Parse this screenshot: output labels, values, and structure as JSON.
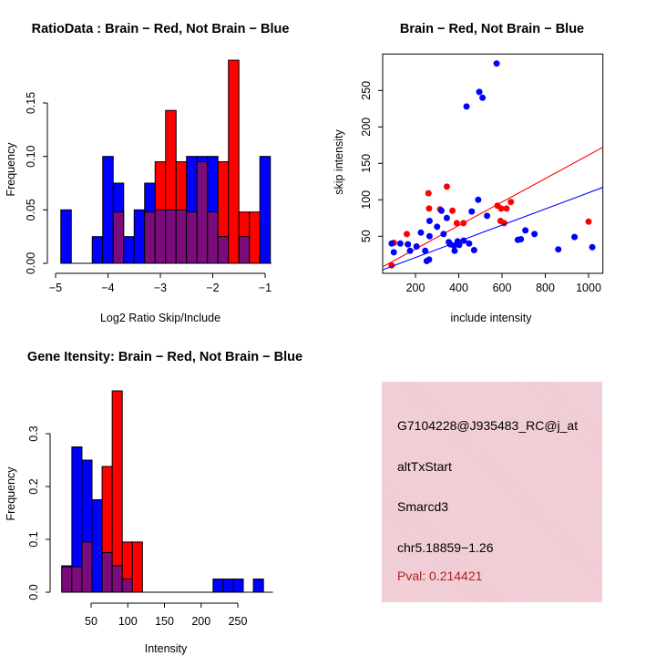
{
  "colors": {
    "red": "#ff0000",
    "blue": "#0000ff",
    "overlap": "#7b0c7c",
    "axis": "#000000",
    "info_bg": "#efc9d2",
    "pval": "#b22222",
    "background": "#ffffff"
  },
  "chart_data": [
    {
      "id": "ratio_hist",
      "type": "bar",
      "title": "RatioData : Brain − Red, Not Brain − Blue",
      "xlabel": "Log2 Ratio Skip/Include",
      "ylabel": "Frequency",
      "xlim": [
        -5.1,
        -0.85
      ],
      "ylim": [
        0,
        0.196
      ],
      "xticks": [
        -5,
        -4,
        -3,
        -2,
        -1
      ],
      "xtick_labels": [
        "−5",
        "−4",
        "−3",
        "−2",
        "−1"
      ],
      "yticks": [
        0,
        0.05,
        0.1,
        0.15
      ],
      "ytick_labels": [
        "0.00",
        "0.05",
        "0.10",
        "0.15"
      ],
      "grid": false,
      "legend": "none",
      "bin_width": 0.2,
      "baseline_range": [
        -4.9,
        -0.88
      ],
      "series": [
        {
          "name": "Not Brain (Blue)",
          "color": "blue",
          "bars": [
            {
              "x": -4.9,
              "h": 0.05
            },
            {
              "x": -4.3,
              "h": 0.025
            },
            {
              "x": -4.1,
              "h": 0.1
            },
            {
              "x": -3.9,
              "h": 0.075
            },
            {
              "x": -3.7,
              "h": 0.025
            },
            {
              "x": -3.5,
              "h": 0.05
            },
            {
              "x": -3.3,
              "h": 0.075
            },
            {
              "x": -3.1,
              "h": 0.05
            },
            {
              "x": -2.9,
              "h": 0.05
            },
            {
              "x": -2.7,
              "h": 0.05
            },
            {
              "x": -2.5,
              "h": 0.1
            },
            {
              "x": -2.3,
              "h": 0.1
            },
            {
              "x": -2.1,
              "h": 0.1
            },
            {
              "x": -1.9,
              "h": 0.025
            },
            {
              "x": -1.5,
              "h": 0.025
            },
            {
              "x": -1.1,
              "h": 0.1
            }
          ]
        },
        {
          "name": "Brain (Red)",
          "color": "red",
          "bars": [
            {
              "x": -3.9,
              "h": 0.048
            },
            {
              "x": -3.3,
              "h": 0.048
            },
            {
              "x": -3.1,
              "h": 0.095
            },
            {
              "x": -2.9,
              "h": 0.143
            },
            {
              "x": -2.7,
              "h": 0.095
            },
            {
              "x": -2.5,
              "h": 0.048
            },
            {
              "x": -2.3,
              "h": 0.095
            },
            {
              "x": -2.1,
              "h": 0.048
            },
            {
              "x": -1.9,
              "h": 0.095
            },
            {
              "x": -1.7,
              "h": 0.19
            },
            {
              "x": -1.5,
              "h": 0.048
            },
            {
              "x": -1.3,
              "h": 0.048
            }
          ]
        }
      ]
    },
    {
      "id": "scatter",
      "type": "scatter",
      "title": "Brain − Red, Not Brain − Blue",
      "xlabel": "include intensity",
      "ylabel": "skip intensity",
      "xlim": [
        48,
        1066
      ],
      "ylim": [
        0,
        300
      ],
      "xticks": [
        200,
        400,
        600,
        800,
        1000
      ],
      "xtick_labels": [
        "200",
        "400",
        "600",
        "800",
        "1000"
      ],
      "yticks": [
        50,
        100,
        150,
        200,
        250
      ],
      "ytick_labels": [
        "50",
        "100",
        "150",
        "200",
        "250"
      ],
      "grid": false,
      "box": true,
      "series": [
        {
          "name": "Brain (Red)",
          "color": "red",
          "line": [
            48,
            8,
            1066,
            172
          ],
          "points": [
            [
              90,
              10
            ],
            [
              100,
              41
            ],
            [
              160,
              53
            ],
            [
              260,
              109
            ],
            [
              263,
              88
            ],
            [
              314,
              87
            ],
            [
              345,
              118
            ],
            [
              371,
              85
            ],
            [
              391,
              68
            ],
            [
              422,
              68
            ],
            [
              579,
              92
            ],
            [
              593,
              71
            ],
            [
              596,
              88
            ],
            [
              610,
              68
            ],
            [
              621,
              88
            ],
            [
              641,
              97
            ],
            [
              1000,
              70
            ]
          ]
        },
        {
          "name": "Not Brain (Blue)",
          "color": "blue",
          "line": [
            48,
            4,
            1066,
            117
          ],
          "points": [
            [
              90,
              40
            ],
            [
              100,
              28
            ],
            [
              130,
              40
            ],
            [
              165,
              39
            ],
            [
              175,
              30
            ],
            [
              205,
              36
            ],
            [
              225,
              55
            ],
            [
              245,
              30
            ],
            [
              252,
              16
            ],
            [
              263,
              18
            ],
            [
              265,
              50
            ],
            [
              265,
              71
            ],
            [
              300,
              63
            ],
            [
              320,
              85
            ],
            [
              330,
              53
            ],
            [
              345,
              75
            ],
            [
              354,
              42
            ],
            [
              361,
              39
            ],
            [
              378,
              37
            ],
            [
              381,
              30
            ],
            [
              395,
              43
            ],
            [
              402,
              38
            ],
            [
              423,
              44
            ],
            [
              436,
              228
            ],
            [
              448,
              40
            ],
            [
              460,
              84
            ],
            [
              471,
              31
            ],
            [
              490,
              100
            ],
            [
              495,
              248
            ],
            [
              510,
              240
            ],
            [
              531,
              78
            ],
            [
              575,
              287
            ],
            [
              673,
              45
            ],
            [
              687,
              46
            ],
            [
              708,
              58
            ],
            [
              750,
              53
            ],
            [
              860,
              32
            ],
            [
              935,
              49
            ],
            [
              1017,
              35
            ]
          ]
        }
      ]
    },
    {
      "id": "gene_hist",
      "type": "bar",
      "title": "Gene Itensity: Brain − Red, Not Brain − Blue",
      "xlabel": "Intensity",
      "ylabel": "Frequency",
      "xlim": [
        2,
        300
      ],
      "ylim": [
        0,
        0.39
      ],
      "xticks": [
        50,
        100,
        150,
        200,
        250
      ],
      "xtick_labels": [
        "50",
        "100",
        "150",
        "200",
        "250"
      ],
      "yticks": [
        0,
        0.1,
        0.2,
        0.3
      ],
      "ytick_labels": [
        "0.0",
        "0.1",
        "0.2",
        "0.3"
      ],
      "grid": false,
      "bin_width": 13.75,
      "baseline_range": [
        10,
        298
      ],
      "series": [
        {
          "name": "Not Brain (Blue)",
          "color": "blue",
          "bars": [
            {
              "x": 10,
              "h": 0.05
            },
            {
              "x": 23.75,
              "h": 0.275
            },
            {
              "x": 37.5,
              "h": 0.25
            },
            {
              "x": 51.25,
              "h": 0.175
            },
            {
              "x": 65,
              "h": 0.075
            },
            {
              "x": 78.75,
              "h": 0.05
            },
            {
              "x": 92.5,
              "h": 0.025
            },
            {
              "x": 216.25,
              "h": 0.025
            },
            {
              "x": 230,
              "h": 0.025
            },
            {
              "x": 243.75,
              "h": 0.025
            },
            {
              "x": 271.25,
              "h": 0.025
            }
          ]
        },
        {
          "name": "Brain (Red)",
          "color": "red",
          "bars": [
            {
              "x": 10,
              "h": 0.048
            },
            {
              "x": 23.75,
              "h": 0.048
            },
            {
              "x": 37.5,
              "h": 0.095
            },
            {
              "x": 65,
              "h": 0.238
            },
            {
              "x": 78.75,
              "h": 0.381
            },
            {
              "x": 92.5,
              "h": 0.095
            },
            {
              "x": 106.25,
              "h": 0.095
            }
          ]
        }
      ]
    }
  ],
  "info_panel": {
    "lines": [
      {
        "text": "G7104228@J935483_RC@j_at"
      },
      {
        "text": "altTxStart"
      },
      {
        "text": "Smarcd3"
      },
      {
        "text": "chr5.18859−1.26"
      },
      {
        "text": "Pval: 0.214421"
      }
    ]
  }
}
